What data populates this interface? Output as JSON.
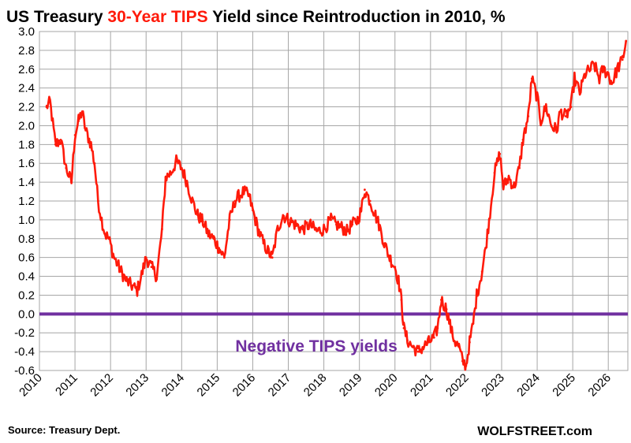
{
  "title": {
    "prefix": "US Treasury ",
    "highlight": "30-Year TIPS",
    "suffix": " Yield since Reintroduction in 2010, %"
  },
  "source": "Source: Treasury Dept.",
  "brand": "WOLFSTREET.com",
  "colors": {
    "series": "#ff1a0a",
    "zero_line": "#7030a0",
    "grid": "#a6a6a6",
    "annotation": "#7030a0",
    "title_accent": "#ff1a0a"
  },
  "chart_data": {
    "type": "line",
    "title": "US Treasury 30-Year TIPS Yield since Reintroduction in 2010, %",
    "xlabel": "",
    "ylabel": "",
    "xlim": [
      2010,
      2026.55
    ],
    "ylim": [
      -0.6,
      3.0
    ],
    "x_ticks": [
      "2010",
      "2011",
      "2012",
      "2013",
      "2014",
      "2015",
      "2016",
      "2017",
      "2018",
      "2019",
      "2020",
      "2021",
      "2022",
      "2023",
      "2024",
      "2025",
      "2026"
    ],
    "y_ticks": [
      "3.0",
      "2.8",
      "2.6",
      "2.4",
      "2.2",
      "2.0",
      "1.8",
      "1.6",
      "1.4",
      "1.2",
      "1.0",
      "0.8",
      "0.6",
      "0.4",
      "0.2",
      "0.0",
      "-0.2",
      "-0.4",
      "-0.6"
    ],
    "grid": true,
    "annotations": [
      {
        "text": "Negative TIPS yields",
        "x": 2020.4,
        "y": -0.33
      }
    ],
    "reference_lines": [
      {
        "y": 0.0
      }
    ],
    "series": [
      {
        "x": [
          2010.2,
          2010.3,
          2010.45,
          2010.6,
          2010.75,
          2010.9,
          2011.0,
          2011.1,
          2011.2,
          2011.3,
          2011.45,
          2011.55,
          2011.65,
          2011.75,
          2011.85,
          2011.95,
          2012.1,
          2012.3,
          2012.45,
          2012.6,
          2012.75,
          2012.9,
          2013.0,
          2013.15,
          2013.3,
          2013.45,
          2013.55,
          2013.7,
          2013.85,
          2014.0,
          2014.15,
          2014.3,
          2014.45,
          2014.6,
          2014.75,
          2014.9,
          2015.05,
          2015.2,
          2015.35,
          2015.5,
          2015.6,
          2015.75,
          2015.9,
          2016.0,
          2016.15,
          2016.3,
          2016.45,
          2016.55,
          2016.7,
          2016.85,
          2017.0,
          2017.2,
          2017.4,
          2017.6,
          2017.8,
          2018.0,
          2018.2,
          2018.35,
          2018.5,
          2018.65,
          2018.8,
          2018.95,
          2019.05,
          2019.15,
          2019.3,
          2019.45,
          2019.55,
          2019.7,
          2019.85,
          2020.0,
          2020.1,
          2020.18,
          2020.25,
          2020.35,
          2020.5,
          2020.65,
          2020.8,
          2020.95,
          2021.1,
          2021.2,
          2021.3,
          2021.45,
          2021.6,
          2021.7,
          2021.8,
          2021.9,
          2022.0,
          2022.1,
          2022.2,
          2022.3,
          2022.45,
          2022.55,
          2022.65,
          2022.8,
          2022.95,
          2023.05,
          2023.2,
          2023.35,
          2023.5,
          2023.6,
          2023.75,
          2023.85,
          2024.0,
          2024.1,
          2024.25,
          2024.4,
          2024.55,
          2024.65,
          2024.8,
          2024.95,
          2025.05,
          2025.2,
          2025.35,
          2025.5,
          2025.6,
          2025.75,
          2025.85,
          2026.0,
          2026.1,
          2026.25,
          2026.4,
          2026.5
        ],
        "values": [
          2.2,
          2.25,
          1.8,
          1.85,
          1.55,
          1.4,
          1.9,
          2.05,
          2.15,
          1.95,
          1.8,
          1.6,
          1.2,
          1.0,
          0.85,
          0.8,
          0.6,
          0.45,
          0.35,
          0.3,
          0.25,
          0.45,
          0.6,
          0.5,
          0.4,
          0.9,
          1.45,
          1.5,
          1.62,
          1.55,
          1.4,
          1.2,
          1.05,
          0.98,
          0.85,
          0.8,
          0.7,
          0.6,
          1.0,
          1.2,
          1.25,
          1.3,
          1.25,
          1.1,
          0.9,
          0.75,
          0.65,
          0.6,
          0.9,
          1.05,
          1.0,
          0.95,
          0.9,
          0.95,
          0.88,
          0.9,
          1.0,
          0.95,
          0.92,
          0.88,
          0.95,
          1.0,
          1.1,
          1.32,
          1.2,
          1.05,
          0.95,
          0.75,
          0.6,
          0.5,
          0.35,
          0.15,
          -0.15,
          -0.28,
          -0.35,
          -0.4,
          -0.35,
          -0.3,
          -0.25,
          -0.15,
          0.15,
          0.05,
          -0.2,
          -0.3,
          -0.35,
          -0.5,
          -0.55,
          -0.3,
          -0.1,
          0.2,
          0.45,
          0.7,
          1.0,
          1.5,
          1.7,
          1.35,
          1.45,
          1.35,
          1.55,
          1.85,
          2.1,
          2.5,
          2.3,
          2.05,
          2.2,
          2.0,
          1.95,
          2.15,
          2.1,
          2.2,
          2.5,
          2.35,
          2.55,
          2.6,
          2.65,
          2.5,
          2.6,
          2.55,
          2.45,
          2.6,
          2.7,
          2.9
        ]
      }
    ]
  }
}
